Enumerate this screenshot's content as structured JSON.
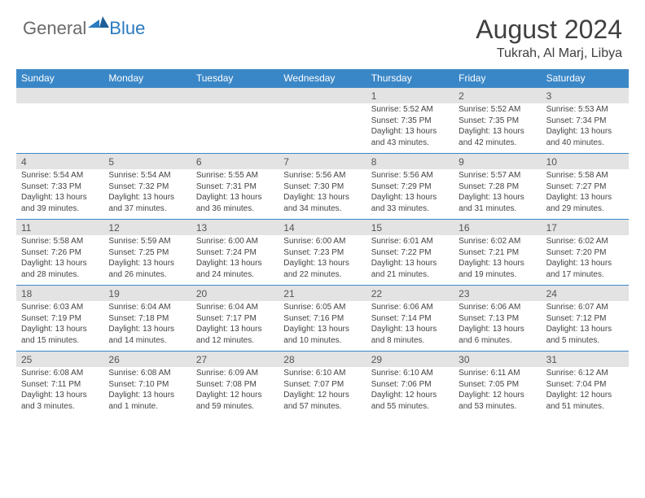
{
  "logo": {
    "general": "General",
    "blue": "Blue"
  },
  "title": "August 2024",
  "location": "Tukrah, Al Marj, Libya",
  "columns": [
    "Sunday",
    "Monday",
    "Tuesday",
    "Wednesday",
    "Thursday",
    "Friday",
    "Saturday"
  ],
  "colors": {
    "header_bg": "#3a87c7",
    "header_text": "#ffffff",
    "daynum_bg": "#e3e3e3",
    "text": "#444444",
    "logo_gray": "#6a6a6a",
    "logo_blue": "#2a7abf"
  },
  "weeks": [
    {
      "nums": [
        "",
        "",
        "",
        "",
        "1",
        "2",
        "3"
      ],
      "data": [
        {
          "sunrise": "",
          "sunset": "",
          "daylight": ""
        },
        {
          "sunrise": "",
          "sunset": "",
          "daylight": ""
        },
        {
          "sunrise": "",
          "sunset": "",
          "daylight": ""
        },
        {
          "sunrise": "",
          "sunset": "",
          "daylight": ""
        },
        {
          "sunrise": "Sunrise: 5:52 AM",
          "sunset": "Sunset: 7:35 PM",
          "daylight": "Daylight: 13 hours and 43 minutes."
        },
        {
          "sunrise": "Sunrise: 5:52 AM",
          "sunset": "Sunset: 7:35 PM",
          "daylight": "Daylight: 13 hours and 42 minutes."
        },
        {
          "sunrise": "Sunrise: 5:53 AM",
          "sunset": "Sunset: 7:34 PM",
          "daylight": "Daylight: 13 hours and 40 minutes."
        }
      ]
    },
    {
      "nums": [
        "4",
        "5",
        "6",
        "7",
        "8",
        "9",
        "10"
      ],
      "data": [
        {
          "sunrise": "Sunrise: 5:54 AM",
          "sunset": "Sunset: 7:33 PM",
          "daylight": "Daylight: 13 hours and 39 minutes."
        },
        {
          "sunrise": "Sunrise: 5:54 AM",
          "sunset": "Sunset: 7:32 PM",
          "daylight": "Daylight: 13 hours and 37 minutes."
        },
        {
          "sunrise": "Sunrise: 5:55 AM",
          "sunset": "Sunset: 7:31 PM",
          "daylight": "Daylight: 13 hours and 36 minutes."
        },
        {
          "sunrise": "Sunrise: 5:56 AM",
          "sunset": "Sunset: 7:30 PM",
          "daylight": "Daylight: 13 hours and 34 minutes."
        },
        {
          "sunrise": "Sunrise: 5:56 AM",
          "sunset": "Sunset: 7:29 PM",
          "daylight": "Daylight: 13 hours and 33 minutes."
        },
        {
          "sunrise": "Sunrise: 5:57 AM",
          "sunset": "Sunset: 7:28 PM",
          "daylight": "Daylight: 13 hours and 31 minutes."
        },
        {
          "sunrise": "Sunrise: 5:58 AM",
          "sunset": "Sunset: 7:27 PM",
          "daylight": "Daylight: 13 hours and 29 minutes."
        }
      ]
    },
    {
      "nums": [
        "11",
        "12",
        "13",
        "14",
        "15",
        "16",
        "17"
      ],
      "data": [
        {
          "sunrise": "Sunrise: 5:58 AM",
          "sunset": "Sunset: 7:26 PM",
          "daylight": "Daylight: 13 hours and 28 minutes."
        },
        {
          "sunrise": "Sunrise: 5:59 AM",
          "sunset": "Sunset: 7:25 PM",
          "daylight": "Daylight: 13 hours and 26 minutes."
        },
        {
          "sunrise": "Sunrise: 6:00 AM",
          "sunset": "Sunset: 7:24 PM",
          "daylight": "Daylight: 13 hours and 24 minutes."
        },
        {
          "sunrise": "Sunrise: 6:00 AM",
          "sunset": "Sunset: 7:23 PM",
          "daylight": "Daylight: 13 hours and 22 minutes."
        },
        {
          "sunrise": "Sunrise: 6:01 AM",
          "sunset": "Sunset: 7:22 PM",
          "daylight": "Daylight: 13 hours and 21 minutes."
        },
        {
          "sunrise": "Sunrise: 6:02 AM",
          "sunset": "Sunset: 7:21 PM",
          "daylight": "Daylight: 13 hours and 19 minutes."
        },
        {
          "sunrise": "Sunrise: 6:02 AM",
          "sunset": "Sunset: 7:20 PM",
          "daylight": "Daylight: 13 hours and 17 minutes."
        }
      ]
    },
    {
      "nums": [
        "18",
        "19",
        "20",
        "21",
        "22",
        "23",
        "24"
      ],
      "data": [
        {
          "sunrise": "Sunrise: 6:03 AM",
          "sunset": "Sunset: 7:19 PM",
          "daylight": "Daylight: 13 hours and 15 minutes."
        },
        {
          "sunrise": "Sunrise: 6:04 AM",
          "sunset": "Sunset: 7:18 PM",
          "daylight": "Daylight: 13 hours and 14 minutes."
        },
        {
          "sunrise": "Sunrise: 6:04 AM",
          "sunset": "Sunset: 7:17 PM",
          "daylight": "Daylight: 13 hours and 12 minutes."
        },
        {
          "sunrise": "Sunrise: 6:05 AM",
          "sunset": "Sunset: 7:16 PM",
          "daylight": "Daylight: 13 hours and 10 minutes."
        },
        {
          "sunrise": "Sunrise: 6:06 AM",
          "sunset": "Sunset: 7:14 PM",
          "daylight": "Daylight: 13 hours and 8 minutes."
        },
        {
          "sunrise": "Sunrise: 6:06 AM",
          "sunset": "Sunset: 7:13 PM",
          "daylight": "Daylight: 13 hours and 6 minutes."
        },
        {
          "sunrise": "Sunrise: 6:07 AM",
          "sunset": "Sunset: 7:12 PM",
          "daylight": "Daylight: 13 hours and 5 minutes."
        }
      ]
    },
    {
      "nums": [
        "25",
        "26",
        "27",
        "28",
        "29",
        "30",
        "31"
      ],
      "data": [
        {
          "sunrise": "Sunrise: 6:08 AM",
          "sunset": "Sunset: 7:11 PM",
          "daylight": "Daylight: 13 hours and 3 minutes."
        },
        {
          "sunrise": "Sunrise: 6:08 AM",
          "sunset": "Sunset: 7:10 PM",
          "daylight": "Daylight: 13 hours and 1 minute."
        },
        {
          "sunrise": "Sunrise: 6:09 AM",
          "sunset": "Sunset: 7:08 PM",
          "daylight": "Daylight: 12 hours and 59 minutes."
        },
        {
          "sunrise": "Sunrise: 6:10 AM",
          "sunset": "Sunset: 7:07 PM",
          "daylight": "Daylight: 12 hours and 57 minutes."
        },
        {
          "sunrise": "Sunrise: 6:10 AM",
          "sunset": "Sunset: 7:06 PM",
          "daylight": "Daylight: 12 hours and 55 minutes."
        },
        {
          "sunrise": "Sunrise: 6:11 AM",
          "sunset": "Sunset: 7:05 PM",
          "daylight": "Daylight: 12 hours and 53 minutes."
        },
        {
          "sunrise": "Sunrise: 6:12 AM",
          "sunset": "Sunset: 7:04 PM",
          "daylight": "Daylight: 12 hours and 51 minutes."
        }
      ]
    }
  ]
}
